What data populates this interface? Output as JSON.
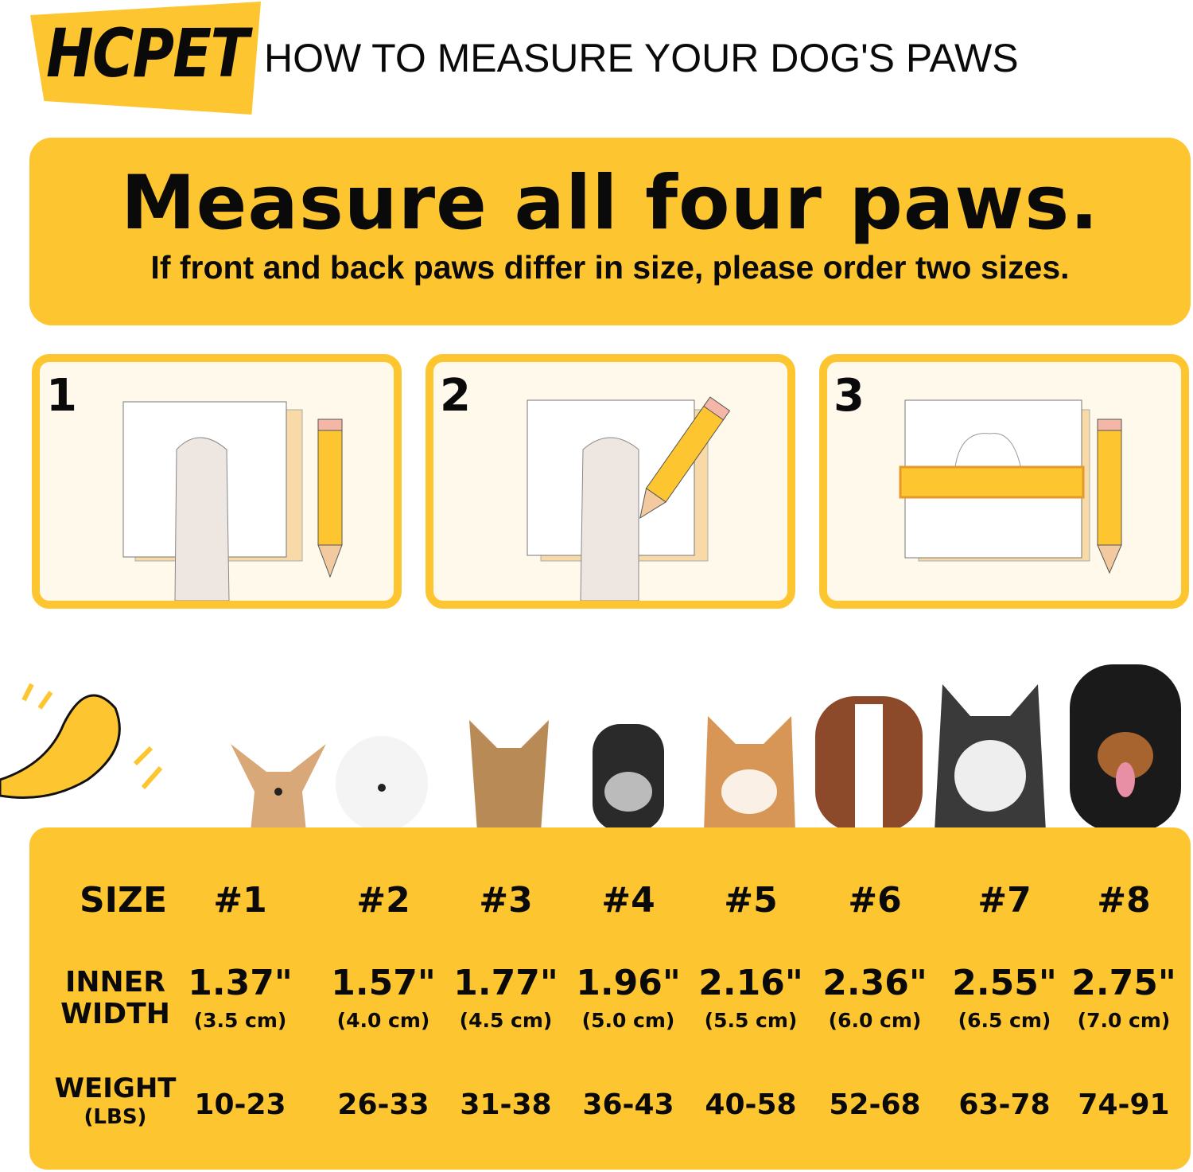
{
  "brand": {
    "logo": "HCPET",
    "color": "#FDC52F"
  },
  "header": {
    "title": "HOW TO MEASURE YOUR DOG'S PAWS"
  },
  "banner": {
    "headline": "Measure all four paws.",
    "subline": "If front and back paws differ in size, please order two sizes."
  },
  "steps": [
    {
      "number": "1",
      "icon": "paw-on-paper-icon"
    },
    {
      "number": "2",
      "icon": "trace-paw-with-pencil-icon"
    },
    {
      "number": "3",
      "icon": "ruler-measure-outline-icon"
    }
  ],
  "dogs": [
    "chihuahua",
    "bichon",
    "yorkshire-terrier",
    "schnauzer",
    "shiba-inu",
    "australian-shepherd",
    "husky",
    "rottweiler"
  ],
  "size_table": {
    "row_labels": {
      "size": "SIZE",
      "inner_width_1": "INNER",
      "inner_width_2": "WIDTH",
      "weight": "WEIGHT",
      "weight_unit": "(LBS)"
    },
    "sizes": [
      "#1",
      "#2",
      "#3",
      "#4",
      "#5",
      "#6",
      "#7",
      "#8"
    ],
    "inner_width_in": [
      "1.37\"",
      "1.57\"",
      "1.77\"",
      "1.96\"",
      "2.16\"",
      "2.36\"",
      "2.55\"",
      "2.75\""
    ],
    "inner_width_cm": [
      "(3.5 cm)",
      "(4.0 cm)",
      "(4.5 cm)",
      "(5.0 cm)",
      "(5.5 cm)",
      "(6.0 cm)",
      "(6.5 cm)",
      "(7.0 cm)"
    ],
    "weight_lbs": [
      "10-23",
      "26-33",
      "31-38",
      "36-43",
      "40-58",
      "52-68",
      "63-78",
      "74-91"
    ]
  }
}
